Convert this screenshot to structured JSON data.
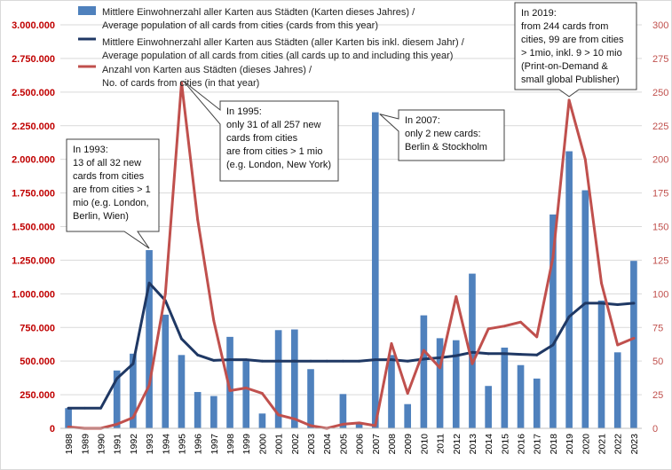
{
  "chart_data": {
    "type": "bar-line",
    "categories": [
      "1988",
      "1989",
      "1990",
      "1991",
      "1992",
      "1993",
      "1994",
      "1995",
      "1996",
      "1997",
      "1998",
      "1999",
      "2000",
      "2001",
      "2002",
      "2003",
      "2004",
      "2005",
      "2006",
      "2007",
      "2008",
      "2009",
      "2010",
      "2011",
      "2012",
      "2013",
      "2014",
      "2015",
      "2016",
      "2017",
      "2018",
      "2019",
      "2020",
      "2021",
      "2022",
      "2023"
    ],
    "y_left": {
      "range": [
        0,
        3000000
      ],
      "ticks": [
        "0",
        "250.000",
        "500.000",
        "750.000",
        "1.000.000",
        "1.250.000",
        "1.500.000",
        "1.750.000",
        "2.000.000",
        "2.250.000",
        "2.500.000",
        "2.750.000",
        "3.000.000"
      ],
      "tick_values": [
        0,
        250000,
        500000,
        750000,
        1000000,
        1250000,
        1500000,
        1750000,
        2000000,
        2250000,
        2500000,
        2750000,
        3000000
      ]
    },
    "y_right": {
      "range": [
        0,
        300
      ],
      "ticks": [
        "0",
        "25",
        "50",
        "75",
        "100",
        "125",
        "150",
        "175",
        "200",
        "225",
        "250",
        "275",
        "300"
      ],
      "tick_values": [
        0,
        25,
        50,
        75,
        100,
        125,
        150,
        175,
        200,
        225,
        250,
        275,
        300
      ]
    },
    "grid": true,
    "series": [
      {
        "name": "Mittlere Einwohnerzahl aller Karten aus Städten (Karten dieses Jahres) / Average population of all cards from cities (cards from this year)",
        "type": "bar",
        "axis": "left",
        "color": "#4f81bd",
        "values": [
          150000,
          null,
          null,
          430000,
          555000,
          1325000,
          845000,
          545000,
          270000,
          240000,
          680000,
          500000,
          110000,
          730000,
          735000,
          440000,
          null,
          255000,
          35000,
          2350000,
          545000,
          180000,
          840000,
          670000,
          655000,
          1150000,
          315000,
          600000,
          470000,
          370000,
          1590000,
          2060000,
          1770000,
          950000,
          565000,
          1245000
        ]
      },
      {
        "name": "Mittlere Einwohnerzahl aller Karten aus Städten (aller Karten bis inkl. diesem Jahr) / Average population of all cards from cities (all cards up to and including this year)",
        "type": "line",
        "axis": "left",
        "color": "#1f3864",
        "values": [
          150000,
          150000,
          150000,
          370000,
          480000,
          1080000,
          950000,
          665000,
          545000,
          505000,
          510000,
          510000,
          500000,
          500000,
          500000,
          500000,
          500000,
          500000,
          500000,
          510000,
          510000,
          500000,
          515000,
          525000,
          540000,
          565000,
          555000,
          555000,
          550000,
          545000,
          620000,
          830000,
          930000,
          930000,
          920000,
          930000
        ]
      },
      {
        "name": "Anzahl von Karten aus Städten (dieses Jahres) / No. of cards from cities (in that year)",
        "type": "line",
        "axis": "right",
        "color": "#c0504d",
        "values": [
          1,
          0,
          0,
          3,
          8,
          32,
          100,
          257,
          155,
          80,
          28,
          30,
          26,
          10,
          7,
          2,
          0,
          3,
          4,
          2,
          63,
          26,
          58,
          45,
          98,
          48,
          74,
          76,
          79,
          68,
          127,
          244,
          200,
          108,
          62,
          67
        ]
      }
    ],
    "legend": {
      "position": "top-left",
      "lines": [
        "Mittlere Einwohnerzahl aller Karten aus Städten (Karten dieses Jahres) /",
        "Average population of all cards from cities (cards from this year)",
        "Mittlere Einwohnerzahl aller Karten aus Städten (aller Karten bis inkl. diesem Jahr) /",
        "Average population of all cards from cities (all cards up to and including this year)",
        "Anzahl von Karten aus Städten (dieses Jahres) /",
        "No. of cards from cities (in that year)"
      ]
    },
    "annotations": [
      {
        "target_year": "1993",
        "lines": [
          "In 1993:",
          "13 of all 32 new",
          "cards from cities",
          "are from cities > 1",
          "mio (e.g. London,",
          "Berlin, Wien)"
        ]
      },
      {
        "target_year": "1995",
        "lines": [
          "In 1995:",
          "only 31 of all 257 new",
          "cards from cities",
          "are from cities > 1 mio",
          "(e.g. London, New York)"
        ]
      },
      {
        "target_year": "2007",
        "lines": [
          "In 2007:",
          "only 2 new cards:",
          "Berlin & Stockholm"
        ]
      },
      {
        "target_year": "2019",
        "lines": [
          "In 2019:",
          "from 244 cards from",
          "cities, 99 are from cities",
          "> 1mio, inkl. 9 > 10 mio",
          "(Print-on-Demand &",
          "small global Publisher)"
        ]
      }
    ]
  }
}
